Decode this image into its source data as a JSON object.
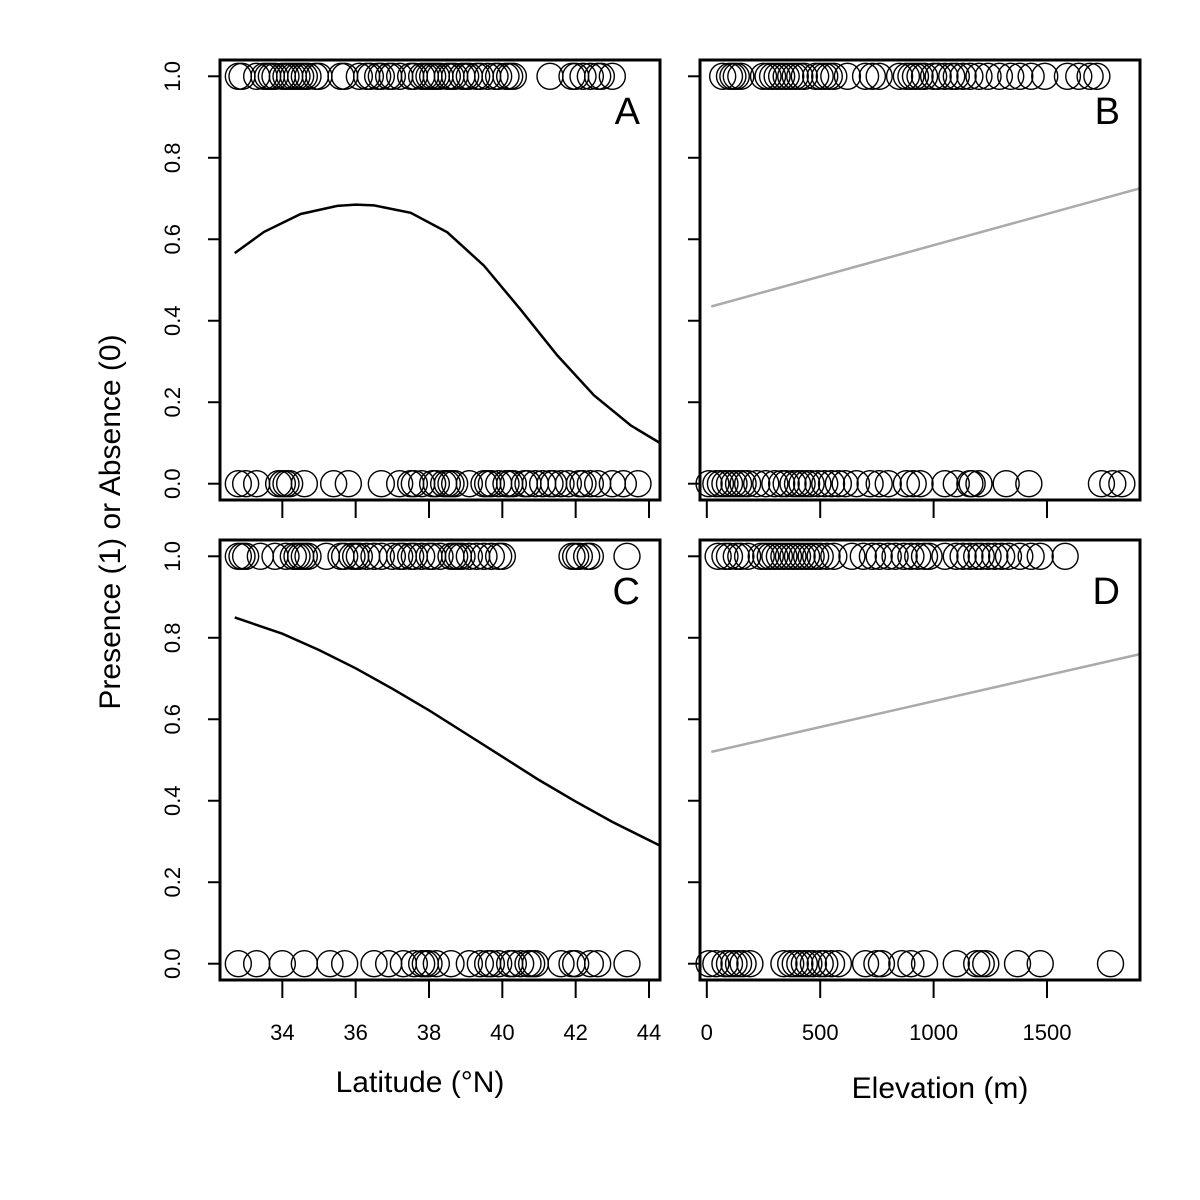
{
  "figure": {
    "ylabel": "Presence (1) or Absence (0)",
    "xlabel_left": "Latitude (°N)",
    "xlabel_right": "Elevation (m)"
  },
  "chart_data": [
    {
      "panel": "A",
      "type": "scatter",
      "x_axis": "latitude",
      "xlim": [
        32.3,
        44.3
      ],
      "ylim": [
        -0.04,
        1.04
      ],
      "yticks": [
        0.0,
        0.2,
        0.4,
        0.6,
        0.8,
        1.0
      ],
      "ytick_labels": [
        "0.0",
        "0.2",
        "0.4",
        "0.6",
        "0.8",
        "1.0"
      ],
      "presence_x": [
        32.8,
        32.9,
        33.3,
        33.5,
        33.6,
        33.7,
        33.8,
        34.0,
        34.1,
        34.2,
        34.3,
        34.4,
        34.5,
        34.6,
        34.7,
        34.9,
        35.0,
        35.6,
        35.7,
        36.1,
        36.3,
        36.4,
        36.6,
        36.7,
        36.9,
        37.0,
        37.2,
        37.5,
        37.6,
        37.8,
        37.9,
        38.0,
        38.1,
        38.2,
        38.3,
        38.5,
        38.6,
        38.7,
        38.9,
        39.0,
        39.1,
        39.3,
        39.4,
        39.6,
        39.8,
        39.9,
        40.1,
        40.2,
        40.3,
        41.3,
        41.9,
        42.0,
        42.2,
        42.4,
        42.6,
        42.7,
        43.0
      ],
      "absence_x": [
        32.8,
        33.0,
        33.3,
        33.9,
        34.0,
        34.1,
        34.2,
        34.6,
        35.4,
        35.8,
        36.7,
        37.2,
        37.5,
        37.6,
        37.8,
        38.1,
        38.2,
        38.4,
        38.5,
        38.6,
        38.7,
        39.1,
        39.5,
        39.6,
        39.7,
        39.9,
        40.1,
        40.2,
        40.3,
        40.6,
        40.7,
        40.9,
        41.1,
        41.3,
        41.4,
        41.6,
        41.8,
        42.1,
        42.2,
        42.4,
        42.6,
        43.0,
        43.3,
        43.7
      ],
      "fit_line": {
        "color": "#000000",
        "x": [
          32.7,
          33.5,
          34.5,
          35.5,
          36.0,
          36.5,
          37.5,
          38.5,
          39.5,
          40.5,
          41.5,
          42.5,
          43.5,
          44.3
        ],
        "y": [
          0.566,
          0.618,
          0.662,
          0.682,
          0.685,
          0.683,
          0.665,
          0.617,
          0.535,
          0.427,
          0.315,
          0.217,
          0.143,
          0.1
        ]
      }
    },
    {
      "panel": "B",
      "type": "scatter",
      "x_axis": "elevation",
      "xlim": [
        -30,
        1910
      ],
      "ylim": [
        -0.04,
        1.04
      ],
      "xticks": [
        0,
        500,
        1000,
        1500
      ],
      "yticks": [
        0.0,
        0.2,
        0.4,
        0.6,
        0.8,
        1.0
      ],
      "presence_x": [
        70,
        100,
        115,
        130,
        150,
        250,
        270,
        290,
        310,
        330,
        350,
        370,
        390,
        410,
        430,
        480,
        500,
        520,
        540,
        560,
        620,
        700,
        730,
        760,
        850,
        880,
        900,
        920,
        940,
        960,
        1000,
        1020,
        1050,
        1080,
        1100,
        1130,
        1160,
        1200,
        1240,
        1290,
        1340,
        1380,
        1430,
        1490,
        1590,
        1640,
        1690,
        1720
      ],
      "absence_x": [
        10,
        40,
        60,
        80,
        100,
        120,
        140,
        160,
        180,
        220,
        260,
        300,
        330,
        350,
        380,
        400,
        420,
        440,
        460,
        490,
        520,
        550,
        580,
        610,
        660,
        720,
        760,
        800,
        880,
        910,
        940,
        1050,
        1100,
        1160,
        1170,
        1200,
        1320,
        1420,
        1740,
        1790,
        1830
      ],
      "fit_line": {
        "color": "#aaaaaa",
        "x": [
          20,
          1910
        ],
        "y": [
          0.435,
          0.725
        ]
      }
    },
    {
      "panel": "C",
      "type": "scatter",
      "x_axis": "latitude",
      "xlim": [
        32.3,
        44.3
      ],
      "ylim": [
        -0.04,
        1.04
      ],
      "xticks": [
        34,
        36,
        38,
        40,
        42,
        44
      ],
      "yticks": [
        0.0,
        0.2,
        0.4,
        0.6,
        0.8,
        1.0
      ],
      "presence_x": [
        32.8,
        32.9,
        33.0,
        33.4,
        33.8,
        34.1,
        34.3,
        34.4,
        34.5,
        34.6,
        34.7,
        35.2,
        35.6,
        35.7,
        35.9,
        36.0,
        36.1,
        36.3,
        36.5,
        36.7,
        37.0,
        37.2,
        37.3,
        37.5,
        37.6,
        37.8,
        38.0,
        38.1,
        38.3,
        38.6,
        38.7,
        38.8,
        38.9,
        39.1,
        39.3,
        39.5,
        39.7,
        39.9,
        40.0,
        41.9,
        42.0,
        42.1,
        42.3,
        42.4,
        43.4
      ],
      "absence_x": [
        32.8,
        33.3,
        34.0,
        34.6,
        35.3,
        35.7,
        36.5,
        36.9,
        37.3,
        37.6,
        37.8,
        37.9,
        38.0,
        38.2,
        38.6,
        39.1,
        39.4,
        39.6,
        39.7,
        39.9,
        40.2,
        40.3,
        40.5,
        40.7,
        40.8,
        40.9,
        41.6,
        41.9,
        42.0,
        42.4,
        42.6,
        43.4
      ],
      "fit_line": {
        "color": "#000000",
        "x": [
          32.7,
          34.0,
          35.0,
          36.0,
          37.0,
          38.0,
          39.0,
          40.0,
          41.0,
          42.0,
          43.0,
          44.3
        ],
        "y": [
          0.85,
          0.81,
          0.77,
          0.725,
          0.675,
          0.622,
          0.565,
          0.508,
          0.451,
          0.398,
          0.348,
          0.29
        ]
      }
    },
    {
      "panel": "D",
      "type": "scatter",
      "x_axis": "elevation",
      "xlim": [
        -30,
        1910
      ],
      "ylim": [
        -0.04,
        1.04
      ],
      "xticks": [
        0,
        500,
        1000,
        1500
      ],
      "xtick_labels": [
        "0",
        "500",
        "1000",
        "1500"
      ],
      "yticks": [
        0.0,
        0.2,
        0.4,
        0.6,
        0.8,
        1.0
      ],
      "presence_x": [
        50,
        80,
        100,
        130,
        150,
        180,
        240,
        260,
        280,
        300,
        320,
        340,
        360,
        380,
        400,
        420,
        440,
        460,
        480,
        500,
        530,
        560,
        640,
        690,
        730,
        760,
        800,
        830,
        870,
        900,
        930,
        960,
        980,
        1050,
        1100,
        1130,
        1160,
        1190,
        1210,
        1240,
        1270,
        1300,
        1330,
        1380,
        1430,
        1470,
        1580
      ],
      "absence_x": [
        10,
        40,
        80,
        100,
        120,
        140,
        160,
        190,
        340,
        370,
        390,
        410,
        430,
        450,
        470,
        500,
        520,
        550,
        580,
        700,
        750,
        770,
        860,
        900,
        960,
        1100,
        1190,
        1210,
        1230,
        1370,
        1470,
        1780
      ],
      "fit_line": {
        "color": "#aaaaaa",
        "x": [
          20,
          1910
        ],
        "y": [
          0.52,
          0.76
        ]
      }
    }
  ]
}
